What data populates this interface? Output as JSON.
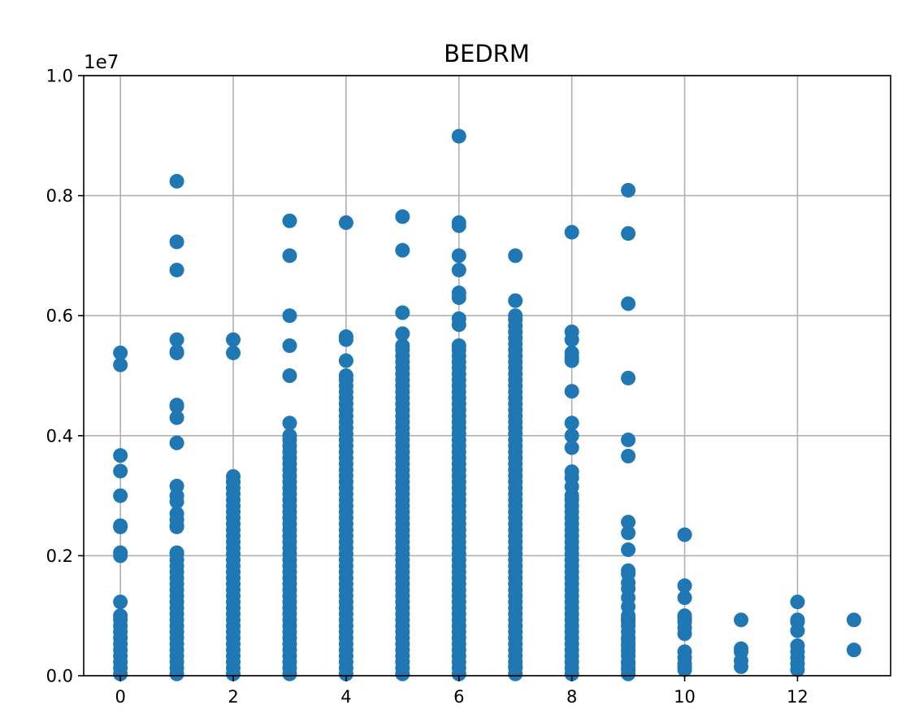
{
  "chart_data": {
    "type": "scatter",
    "title": "BEDRM",
    "xlabel": "",
    "ylabel": "",
    "xlim": [
      -0.65,
      13.65
    ],
    "ylim": [
      0,
      1.0
    ],
    "y_offset_label": "1e7",
    "x_ticks": [
      0,
      2,
      4,
      6,
      8,
      10,
      12
    ],
    "y_ticks": [
      0.0,
      0.2,
      0.4,
      0.6,
      0.8,
      1.0
    ],
    "grid": true,
    "color": "#1f77b4",
    "point_groups": [
      {
        "x": 0,
        "dense_max": 0.1,
        "y": [
          0.538,
          0.518,
          0.367,
          0.341,
          0.3,
          0.25,
          0.248,
          0.205,
          0.2,
          0.123
        ]
      },
      {
        "x": 1,
        "dense_max": 0.205,
        "y": [
          0.824,
          0.723,
          0.676,
          0.56,
          0.54,
          0.538,
          0.451,
          0.449,
          0.43,
          0.388,
          0.316,
          0.3,
          0.29,
          0.27,
          0.26,
          0.25,
          0.248
        ]
      },
      {
        "x": 2,
        "dense_max": 0.332,
        "y": [
          0.56,
          0.538
        ]
      },
      {
        "x": 3,
        "dense_max": 0.4,
        "y": [
          0.758,
          0.7,
          0.6,
          0.55,
          0.5,
          0.421
        ]
      },
      {
        "x": 4,
        "dense_max": 0.5,
        "y": [
          0.755,
          0.565,
          0.56,
          0.525
        ]
      },
      {
        "x": 5,
        "dense_max": 0.55,
        "y": [
          0.765,
          0.709,
          0.605,
          0.57
        ]
      },
      {
        "x": 6,
        "dense_max": 0.55,
        "y": [
          0.899,
          0.755,
          0.75,
          0.7,
          0.676,
          0.638,
          0.63,
          0.595,
          0.585
        ]
      },
      {
        "x": 7,
        "dense_max": 0.6,
        "y": [
          0.7,
          0.625,
          0.015
        ]
      },
      {
        "x": 8,
        "dense_max": 0.3,
        "y": [
          0.739,
          0.573,
          0.56,
          0.538,
          0.53,
          0.525,
          0.474,
          0.421,
          0.4,
          0.38,
          0.34,
          0.33,
          0.315
        ]
      },
      {
        "x": 9,
        "dense_max": 0.1,
        "y": [
          0.809,
          0.737,
          0.62,
          0.496,
          0.393,
          0.366,
          0.256,
          0.238,
          0.21,
          0.175,
          0.17,
          0.155,
          0.145,
          0.13,
          0.115,
          0.095,
          0.09,
          0.06,
          0.05,
          0.04,
          0.02,
          0.01
        ]
      },
      {
        "x": 10,
        "dense_max": 0.0,
        "y": [
          0.235,
          0.15,
          0.13,
          0.1,
          0.095,
          0.09,
          0.08,
          0.07,
          0.04,
          0.03,
          0.02,
          0.015,
          0.01
        ]
      },
      {
        "x": 11,
        "dense_max": 0.0,
        "y": [
          0.093,
          0.045,
          0.04,
          0.025,
          0.015
        ]
      },
      {
        "x": 12,
        "dense_max": 0.0,
        "y": [
          0.123,
          0.093,
          0.09,
          0.075,
          0.05,
          0.04,
          0.03,
          0.02,
          0.01
        ]
      },
      {
        "x": 13,
        "dense_max": 0.0,
        "y": [
          0.093,
          0.043
        ]
      }
    ]
  }
}
